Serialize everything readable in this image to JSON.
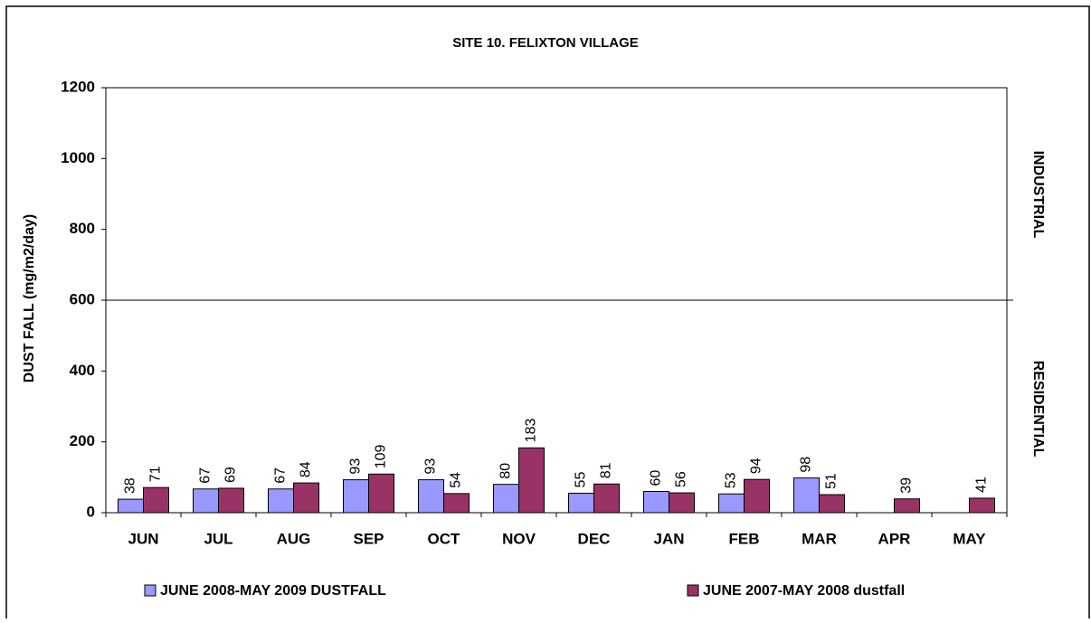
{
  "chart_data": {
    "type": "bar",
    "title": "SITE 10.  FELIXTON VILLAGE",
    "y_label": "DUST FALL  (mg/m2/day)",
    "categories": [
      "JUN",
      "JUL",
      "AUG",
      "SEP",
      "OCT",
      "NOV",
      "DEC",
      "JAN",
      "FEB",
      "MAR",
      "APR",
      "MAY"
    ],
    "series": [
      {
        "name": "JUNE 2008-MAY 2009 DUSTFALL",
        "color": "#9999ff",
        "values": [
          38,
          67,
          67,
          93,
          93,
          80,
          55,
          60,
          53,
          98,
          null,
          null
        ]
      },
      {
        "name": "JUNE 2007-MAY 2008 dustfall",
        "color": "#993366",
        "values": [
          71,
          69,
          84,
          109,
          54,
          183,
          81,
          56,
          94,
          51,
          39,
          41
        ]
      }
    ],
    "ylim": [
      0,
      1200
    ],
    "yticks": [
      0,
      200,
      400,
      600,
      800,
      1000,
      1200
    ],
    "reference_line": 600,
    "annotations": [
      "INDUSTRIAL",
      "RESIDENTIAL"
    ],
    "grid": false,
    "legend": "bottom"
  }
}
